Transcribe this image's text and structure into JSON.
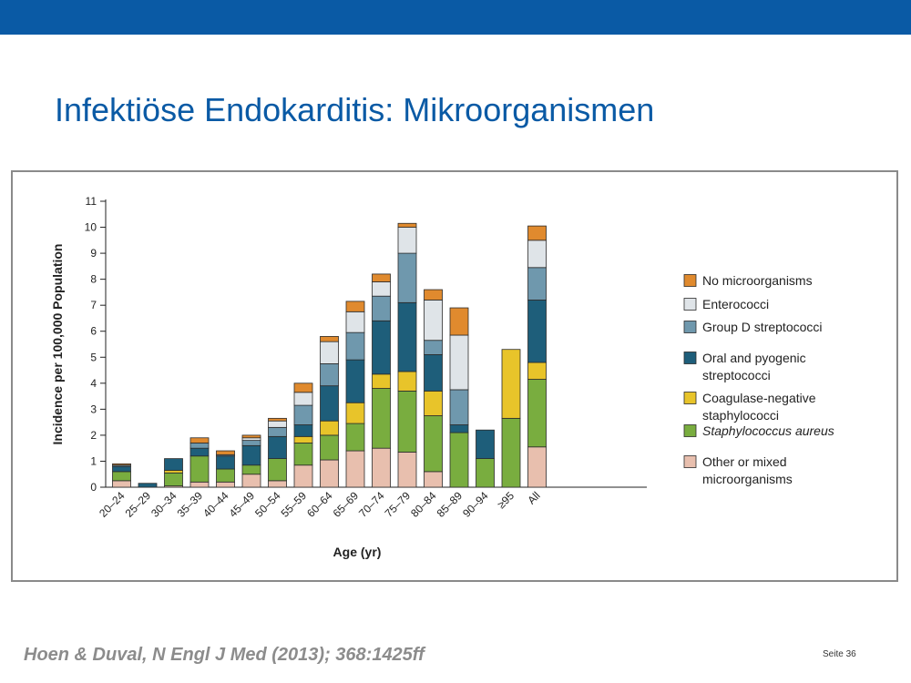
{
  "slide": {
    "title": "Infektiöse Endokarditis: Mikroorganismen",
    "citation": "Hoen & Duval, N Engl J Med (2013); 368:1425ff",
    "page_number": "Seite 36",
    "header_color": "#0a5aa5"
  },
  "chart_data": {
    "type": "bar",
    "stacked": true,
    "title": "",
    "xlabel": "Age (yr)",
    "ylabel": "Incidence per 100,000 Population",
    "ylim": [
      0,
      11
    ],
    "yticks": [
      0,
      1,
      2,
      3,
      4,
      5,
      6,
      7,
      8,
      9,
      10,
      11
    ],
    "grid": false,
    "legend_position": "right",
    "categories": [
      "20–24",
      "25–29",
      "30–34",
      "35–39",
      "40–44",
      "45–49",
      "50–54",
      "55–59",
      "60–64",
      "65–69",
      "70–74",
      "75–79",
      "80–84",
      "85–89",
      "90–94",
      "≥95",
      "All"
    ],
    "series": [
      {
        "name": "Other or mixed microorganisms",
        "legend_lines": [
          "Other or mixed",
          "microorganisms"
        ],
        "italic": false,
        "color": "#e8bfae",
        "values": [
          0.25,
          0,
          0.05,
          0.2,
          0.2,
          0.5,
          0.25,
          0.85,
          1.05,
          1.4,
          1.5,
          1.35,
          0.6,
          0,
          0,
          0,
          1.55
        ]
      },
      {
        "name": "Staphylococcus aureus",
        "legend_lines": [
          "Staphylococcus aureus"
        ],
        "italic": true,
        "color": "#79ad3f",
        "values": [
          0.35,
          0,
          0.5,
          1.0,
          0.5,
          0.35,
          0.85,
          0.85,
          0.95,
          1.05,
          2.3,
          2.35,
          2.15,
          2.1,
          1.1,
          2.65,
          2.6
        ]
      },
      {
        "name": "Coagulase-negative staphylococci",
        "legend_lines": [
          "Coagulase-negative",
          "staphylococci"
        ],
        "italic": false,
        "color": "#e8c42a",
        "values": [
          0,
          0,
          0.1,
          0,
          0,
          0,
          0,
          0.25,
          0.55,
          0.8,
          0.55,
          0.75,
          0.95,
          0,
          0,
          2.65,
          0.65
        ]
      },
      {
        "name": "Oral and pyogenic streptococci",
        "legend_lines": [
          "Oral and pyogenic",
          "streptococci"
        ],
        "italic": false,
        "color": "#1e5e7a",
        "values": [
          0.2,
          0.15,
          0.45,
          0.3,
          0.5,
          0.75,
          0.85,
          0.45,
          1.35,
          1.65,
          2.05,
          2.65,
          1.4,
          0.3,
          1.1,
          0,
          2.4
        ]
      },
      {
        "name": "Group D streptococci",
        "legend_lines": [
          "Group D streptococci"
        ],
        "italic": false,
        "color": "#6f98ad",
        "values": [
          0.05,
          0,
          0,
          0.2,
          0.05,
          0.2,
          0.35,
          0.75,
          0.85,
          1.05,
          0.95,
          1.9,
          0.55,
          1.35,
          0,
          0,
          1.25
        ]
      },
      {
        "name": "Enterococci",
        "legend_lines": [
          "Enterococci"
        ],
        "italic": false,
        "color": "#dfe4e8",
        "values": [
          0,
          0,
          0,
          0,
          0,
          0.1,
          0.25,
          0.5,
          0.85,
          0.8,
          0.55,
          1.0,
          1.55,
          2.1,
          0,
          0,
          1.05
        ]
      },
      {
        "name": "No microorganisms",
        "legend_lines": [
          "No microorganisms"
        ],
        "italic": false,
        "color": "#e08a2e",
        "values": [
          0.05,
          0,
          0,
          0.2,
          0.15,
          0.1,
          0.1,
          0.35,
          0.2,
          0.4,
          0.3,
          0.15,
          0.4,
          1.05,
          0,
          0,
          0.55
        ]
      }
    ]
  }
}
